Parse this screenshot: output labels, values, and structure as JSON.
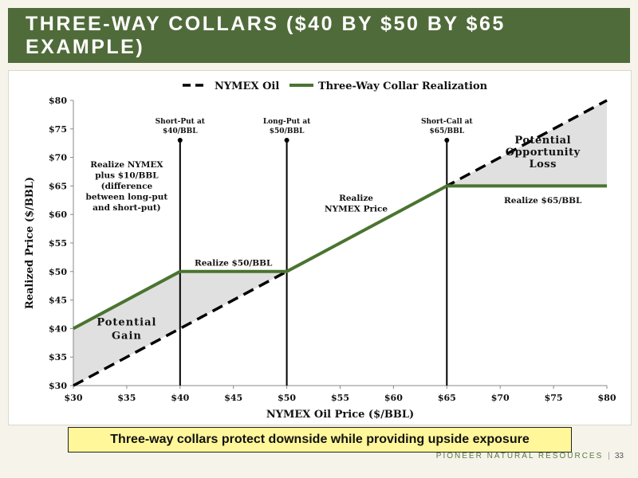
{
  "header": {
    "title": "THREE-WAY COLLARS ($40 BY $50 BY $65 EXAMPLE)"
  },
  "callout": "Three-way collars protect downside while providing upside exposure",
  "footer": {
    "company": "PIONEER NATURAL RESOURCES",
    "page": "33"
  },
  "colors": {
    "title_bar": "#4f6b3a",
    "collar_line": "#4a7430",
    "shade": "#e0e0e0",
    "callout_bg": "#fff799"
  },
  "chart_data": {
    "type": "line",
    "xlabel": "NYMEX Oil Price ($/BBL)",
    "ylabel": "Realized Price ($/BBL)",
    "xlim": [
      30,
      80
    ],
    "ylim": [
      30,
      80
    ],
    "x_ticks": [
      30,
      35,
      40,
      45,
      50,
      55,
      60,
      65,
      70,
      75,
      80
    ],
    "y_ticks": [
      30,
      35,
      40,
      45,
      50,
      55,
      60,
      65,
      70,
      75,
      80
    ],
    "x_tick_labels": [
      "$30",
      "$35",
      "$40",
      "$45",
      "$50",
      "$55",
      "$60",
      "$65",
      "$70",
      "$75",
      "$80"
    ],
    "y_tick_labels": [
      "$30",
      "$35",
      "$40",
      "$45",
      "$50",
      "$55",
      "$60",
      "$65",
      "$70",
      "$75",
      "$80"
    ],
    "legend_position": "top",
    "series": [
      {
        "name": "NYMEX Oil",
        "style": "dashed",
        "color": "#000000",
        "x": [
          30,
          80
        ],
        "y": [
          30,
          80
        ]
      },
      {
        "name": "Three-Way Collar Realization",
        "style": "solid",
        "color": "#4a7430",
        "x": [
          30,
          40,
          50,
          65,
          80
        ],
        "y": [
          40,
          50,
          50,
          65,
          65
        ]
      }
    ],
    "vertical_lines": [
      {
        "x": 40,
        "label": [
          "Short-Put at",
          "$40/BBL"
        ]
      },
      {
        "x": 50,
        "label": [
          "Long-Put at",
          "$50/BBL"
        ]
      },
      {
        "x": 65,
        "label": [
          "Short-Call at",
          "$65/BBL"
        ]
      }
    ],
    "shaded_regions": [
      {
        "name": "Potential Gain",
        "x_range": [
          30,
          50
        ]
      },
      {
        "name": "Potential Opportunity Loss",
        "x_range": [
          65,
          80
        ]
      }
    ],
    "annotations": [
      {
        "lines": [
          "Realize NYMEX",
          "plus $10/BBL",
          "(difference",
          "between long-put",
          "and short-put)"
        ],
        "x": 35,
        "y": 65
      },
      {
        "lines": [
          "Potential",
          "Gain"
        ],
        "x": 35,
        "y": 40
      },
      {
        "lines": [
          "Realize $50/BBL"
        ],
        "x": 45,
        "y": 51.5
      },
      {
        "lines": [
          "Realize",
          "NYMEX Price"
        ],
        "x": 56.5,
        "y": 62
      },
      {
        "lines": [
          "Realize $65/BBL"
        ],
        "x": 74,
        "y": 62.5
      },
      {
        "lines": [
          "Potential",
          "Opportunity",
          "Loss"
        ],
        "x": 74,
        "y": 71
      }
    ]
  }
}
